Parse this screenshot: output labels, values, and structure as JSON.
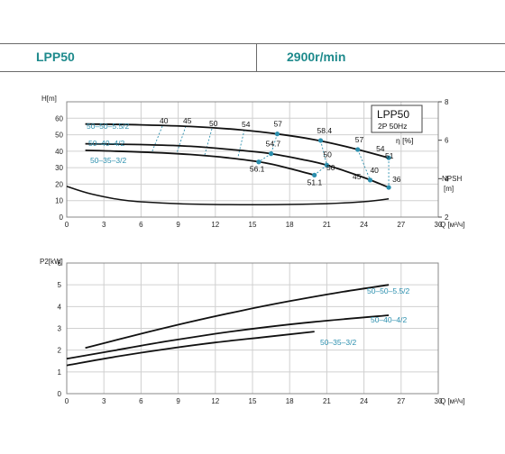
{
  "header": {
    "model": "LPP50",
    "speed": "2900r/min"
  },
  "colors": {
    "accent": "#1e8a8c",
    "label_blue": "#2b8fae",
    "grid": "#d0d0d0",
    "curve": "#111111",
    "dot": "#2b8fae"
  },
  "chart_data": [
    {
      "type": "line",
      "name": "head-curves",
      "xlabel": "Q [м³/ч]",
      "ylabel": "H[m]",
      "y2label": "NPSH [m]",
      "efficiency_label": "η [%]",
      "xlim": [
        0,
        30
      ],
      "ylim": [
        0,
        70
      ],
      "y2lim": [
        2,
        8
      ],
      "x_ticks": [
        0,
        3,
        6,
        9,
        12,
        15,
        18,
        21,
        24,
        27,
        30
      ],
      "y_ticks": [
        0,
        10,
        20,
        30,
        40,
        50,
        60
      ],
      "y2_ticks": [
        2,
        4,
        6,
        8
      ],
      "grid": true,
      "legend_box": {
        "title": "LPP50",
        "subtitle": "2P  50Hz"
      },
      "series": [
        {
          "name": "50–50–5.5/2",
          "x": [
            1.5,
            6,
            10,
            14,
            17,
            20,
            23,
            26
          ],
          "y": [
            56.5,
            56,
            55,
            53,
            50.5,
            47,
            42,
            36
          ]
        },
        {
          "name": "50–40–4/2",
          "x": [
            1.5,
            6,
            10,
            14,
            16.5,
            19,
            21,
            24,
            26
          ],
          "y": [
            44.5,
            44,
            43,
            40.5,
            38.5,
            35,
            31.5,
            24,
            18
          ]
        },
        {
          "name": "50–35–3/2",
          "x": [
            1.5,
            6,
            10,
            13,
            16,
            18,
            20
          ],
          "y": [
            40.5,
            39.5,
            38,
            36,
            33,
            29.5,
            25.5
          ]
        }
      ],
      "npsh": {
        "x": [
          0,
          2,
          5,
          9,
          13,
          17,
          21,
          24,
          26
        ],
        "y": [
          3.6,
          3.2,
          2.85,
          2.7,
          2.65,
          2.65,
          2.7,
          2.8,
          2.95
        ]
      },
      "efficiency_points": [
        {
          "series": "50–50–5.5/2",
          "x": 17,
          "y": 50.5,
          "eta": "57"
        },
        {
          "series": "50–50–5.5/2",
          "x": 20.5,
          "y": 46.5,
          "eta": "58.4"
        },
        {
          "series": "50–50–5.5/2",
          "x": 23.5,
          "y": 41,
          "eta": "57"
        },
        {
          "series": "50–50–5.5/2",
          "x": 26,
          "y": 36,
          "eta": "54"
        },
        {
          "series": "50–40–4/2",
          "x": 16.5,
          "y": 38.5,
          "eta": "54.7"
        },
        {
          "series": "50–40–4/2",
          "x": 21,
          "y": 31.5,
          "eta": "50"
        },
        {
          "series": "50–40–4/2",
          "x": 24.5,
          "y": 22.5,
          "eta": "40"
        },
        {
          "series": "50–40–4/2",
          "x": 26,
          "y": 18,
          "eta": "36"
        },
        {
          "series": "50–35–3/2",
          "x": 15.5,
          "y": 33.5,
          "eta": "56.1"
        },
        {
          "series": "50–35–3/2",
          "x": 20,
          "y": 25.5,
          "eta": "51.1"
        }
      ],
      "iso_labels": [
        "40",
        "45",
        "50",
        "54",
        "57",
        "58.4",
        "57",
        "54",
        "51",
        "50",
        "45",
        "40",
        "36",
        "54.7",
        "56.1",
        "51.1"
      ]
    },
    {
      "type": "line",
      "name": "power-curves",
      "xlabel": "Q [м³/ч]",
      "ylabel": "P2[kW]",
      "xlim": [
        0,
        30
      ],
      "ylim": [
        0,
        6
      ],
      "x_ticks": [
        0,
        3,
        6,
        9,
        12,
        15,
        18,
        21,
        24,
        27,
        30
      ],
      "y_ticks": [
        0,
        1,
        2,
        3,
        4,
        5,
        6
      ],
      "grid": true,
      "series": [
        {
          "name": "50–50–5.5/2",
          "x": [
            1.5,
            6,
            10,
            14,
            18,
            22,
            26
          ],
          "y": [
            2.1,
            2.75,
            3.3,
            3.8,
            4.25,
            4.65,
            5.0
          ]
        },
        {
          "name": "50–40–4/2",
          "x": [
            0,
            4,
            8,
            12,
            16,
            20,
            26
          ],
          "y": [
            1.6,
            2.0,
            2.4,
            2.75,
            3.05,
            3.3,
            3.6
          ]
        },
        {
          "name": "50–35–3/2",
          "x": [
            0,
            4,
            8,
            12,
            16,
            20
          ],
          "y": [
            1.3,
            1.7,
            2.05,
            2.35,
            2.6,
            2.85
          ]
        }
      ]
    }
  ]
}
